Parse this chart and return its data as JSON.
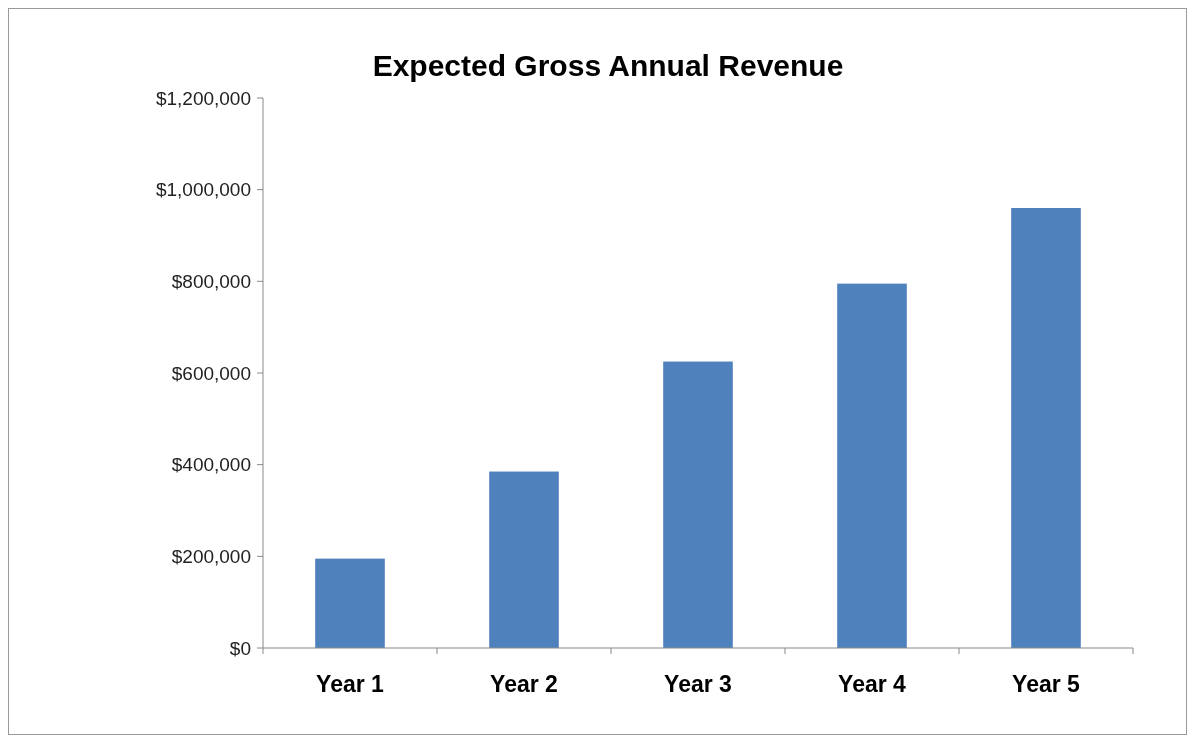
{
  "chart_data": {
    "type": "bar",
    "title": "Expected Gross Annual Revenue",
    "categories": [
      "Year 1",
      "Year 2",
      "Year 3",
      "Year 4",
      "Year 5"
    ],
    "values": [
      195000,
      385000,
      625000,
      795000,
      960000
    ],
    "color": "#4f81bd",
    "ylim": [
      0,
      1200000
    ],
    "yticks": [
      {
        "value": 0,
        "label": "$0"
      },
      {
        "value": 200000,
        "label": "$200,000"
      },
      {
        "value": 400000,
        "label": "$400,000"
      },
      {
        "value": 600000,
        "label": "$600,000"
      },
      {
        "value": 800000,
        "label": "$800,000"
      },
      {
        "value": 1000000,
        "label": "$1,000,000"
      },
      {
        "value": 1200000,
        "label": "$1,200,000"
      }
    ],
    "grid": false
  }
}
